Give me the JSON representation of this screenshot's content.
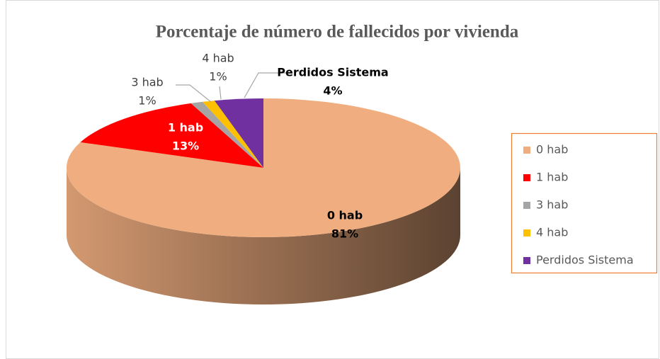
{
  "chart_data": {
    "type": "pie",
    "title": "Porcentaje de número de fallecidos por vivienda",
    "categories": [
      "0 hab",
      "1 hab",
      "3 hab",
      "4 hab",
      "Perdidos Sistema"
    ],
    "values": [
      81,
      13,
      1,
      1,
      4
    ],
    "value_labels": [
      "81%",
      "13%",
      "1%",
      "1%",
      "4%"
    ],
    "colors": [
      "#F0AE80",
      "#FF0000",
      "#A5A5A5",
      "#FFC000",
      "#7030A0"
    ],
    "legend": "right"
  }
}
